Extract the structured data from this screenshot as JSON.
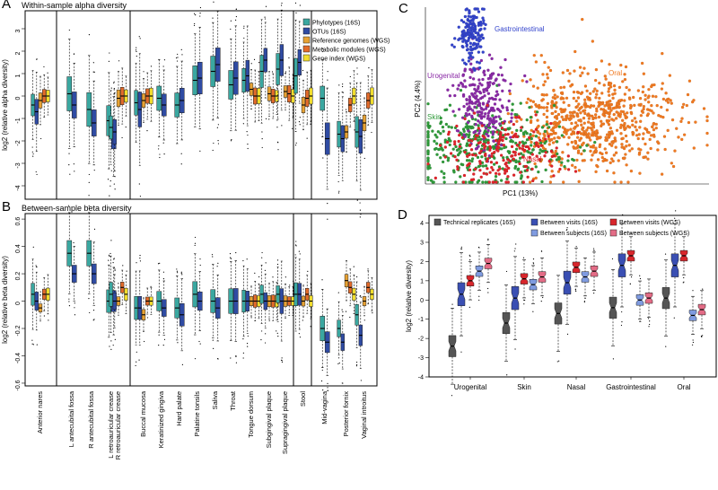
{
  "colors": {
    "phylo": "#3aa7a0",
    "otu": "#2f4ba3",
    "refgen": "#e8a233",
    "metab": "#e36b2a",
    "gene": "#f1dd2e",
    "gastro": "#3344cc",
    "oral": "#f07a22",
    "uro": "#8a2aa6",
    "skin": "#2f9a3a",
    "nasal": "#e0242a",
    "tech": "#555555",
    "bv16": "#3a4fb3",
    "bs16": "#d8262c",
    "bvwgs": "#7f9be0",
    "bswgs": "#e36c86"
  },
  "panels": {
    "A": {
      "letter": "A",
      "title": "Within-sample alpha diversity",
      "ylabel": "log2 (relative alpha diversity)"
    },
    "B": {
      "letter": "B",
      "title": "Between-sample beta diversity",
      "ylabel": "log2 (relative beta diversity)"
    },
    "C": {
      "letter": "C"
    },
    "D": {
      "letter": "D"
    }
  },
  "chart_data": [
    {
      "id": "A",
      "type": "box",
      "title": "Within-sample alpha diversity",
      "ylabel": "log2 (relative alpha diversity)",
      "yticks": [
        -4,
        -3,
        -2,
        -1,
        0,
        1,
        2,
        3
      ],
      "ylim": [
        -4.6,
        3.8
      ],
      "legend": [
        "Phylotypes (16S)",
        "OTUs (16S)",
        "Reference genomes (WGS)",
        "Metabolic modules (WGS)",
        "Gene index (WGS)"
      ],
      "categories": [
        "Anterior nares",
        "L antecubital fossa",
        "R antecubital fossa",
        "L retroauricular crease",
        "R retroauricular crease",
        "Buccal mucosa",
        "Keratinized gingiva",
        "Hard palate",
        "Palatine tonsils",
        "Saliva",
        "Throat",
        "Tongue dorsum",
        "Subgingival plaque",
        "Supragingival plaque",
        "Stool",
        "Mid-vagina",
        "Posterior fornix",
        "Vaginal introitus"
      ],
      "series": [
        {
          "name": "Phylotypes (16S)",
          "medians": [
            -0.4,
            0.1,
            -0.6,
            -1.1,
            -1.4,
            -0.3,
            -0.1,
            -0.4,
            0.7,
            1.1,
            0.5,
            0.7,
            1.1,
            1.2,
            0.9,
            -0.1,
            -1.7,
            -1.6
          ]
        },
        {
          "name": "OTUs (16S)",
          "medians": [
            -0.7,
            -0.4,
            -1.2,
            -1.8,
            -1.6,
            -0.6,
            -0.4,
            -0.2,
            0.8,
            1.4,
            0.8,
            0.9,
            1.6,
            1.6,
            1.5,
            -1.9,
            -1.9,
            -1.8
          ]
        },
        {
          "name": "Reference genomes (WGS)",
          "medians": [
            -0.2,
            null,
            null,
            null,
            -0.1,
            -0.2,
            null,
            null,
            null,
            null,
            null,
            0.3,
            0.1,
            0.2,
            -0.4,
            null,
            -1.6,
            -1.2
          ]
        },
        {
          "name": "Metabolic modules (WGS)",
          "medians": [
            0.0,
            null,
            null,
            null,
            0.0,
            0.0,
            null,
            null,
            null,
            null,
            null,
            0.0,
            0.0,
            0.1,
            -0.1,
            null,
            -0.4,
            -0.2
          ]
        },
        {
          "name": "Gene index (WGS)",
          "medians": [
            0.0,
            null,
            null,
            null,
            0.0,
            0.0,
            null,
            null,
            null,
            null,
            null,
            0.0,
            0.0,
            0.0,
            0.0,
            null,
            0.0,
            0.0
          ]
        }
      ]
    },
    {
      "id": "B",
      "type": "box",
      "title": "Between-sample beta diversity",
      "ylabel": "log2 (relative beta diversity)",
      "yticks": [
        -0.6,
        -0.4,
        -0.2,
        0.0,
        0.2,
        0.4,
        0.6
      ],
      "ylim": [
        -0.62,
        0.64
      ],
      "categories": [
        "Anterior nares",
        "L antecubital fossa",
        "R antecubital fossa",
        "L retroauricular crease",
        "R retroauricular crease",
        "Buccal mucosa",
        "Keratinized gingiva",
        "Hard palate",
        "Palatine tonsils",
        "Saliva",
        "Throat",
        "Tongue dorsum",
        "Subgingival plaque",
        "Supragingival plaque",
        "Stool",
        "Mid-vagina",
        "Posterior fornix",
        "Vaginal introitus"
      ],
      "series": [
        {
          "name": "Phylotypes (16S)",
          "medians": [
            0.05,
            0.35,
            0.35,
            0.0,
            0.05,
            -0.05,
            0.0,
            -0.05,
            0.05,
            0.0,
            0.0,
            0.0,
            0.05,
            0.05,
            0.05,
            -0.2,
            -0.2,
            -0.1
          ]
        },
        {
          "name": "OTUs (16S)",
          "medians": [
            0.0,
            0.2,
            0.2,
            0.0,
            0.0,
            -0.05,
            -0.05,
            -0.1,
            0.0,
            -0.05,
            0.0,
            0.0,
            0.0,
            0.0,
            0.05,
            -0.3,
            -0.3,
            -0.25
          ]
        },
        {
          "name": "Reference genomes (WGS)",
          "medians": [
            -0.05,
            null,
            null,
            null,
            0.0,
            -0.1,
            null,
            null,
            null,
            null,
            null,
            0.0,
            0.0,
            0.0,
            0.0,
            null,
            0.15,
            0.0
          ]
        },
        {
          "name": "Metabolic modules (WGS)",
          "medians": [
            0.05,
            null,
            null,
            null,
            0.1,
            0.0,
            null,
            null,
            null,
            null,
            null,
            0.0,
            0.0,
            0.0,
            0.05,
            null,
            0.1,
            0.1
          ]
        },
        {
          "name": "Gene index (WGS)",
          "medians": [
            0.05,
            null,
            null,
            null,
            0.05,
            0.0,
            null,
            null,
            null,
            null,
            null,
            0.0,
            0.0,
            0.0,
            0.0,
            null,
            0.05,
            0.05
          ]
        }
      ]
    },
    {
      "id": "C",
      "type": "scatter",
      "xlabel": "PC1 (13%)",
      "ylabel": "PC2 (4.4%)",
      "groups": [
        {
          "name": "Gastrointestinal",
          "key": "gastro"
        },
        {
          "name": "Oral",
          "key": "oral"
        },
        {
          "name": "Urogenital",
          "key": "uro"
        },
        {
          "name": "Skin",
          "key": "skin"
        },
        {
          "name": "Nasal",
          "key": "nasal"
        }
      ]
    },
    {
      "id": "D",
      "type": "box",
      "ylabel": "log2 (relative diversity)",
      "yticks": [
        -4,
        -3,
        -2,
        -1,
        0,
        1,
        2,
        3,
        4
      ],
      "ylim": [
        -4,
        4.4
      ],
      "legend": [
        "Technical replicates (16S)",
        "Between visits (16S)",
        "Between visits (WGS)",
        "Between subjects (16S)",
        "Between subjects (WGS)"
      ],
      "categories": [
        "Urogenital",
        "Skin",
        "Nasal",
        "Gastrointestinal",
        "Oral"
      ],
      "series": [
        {
          "name": "Technical replicates (16S)",
          "medians": [
            -2.4,
            -1.2,
            -0.7,
            -0.4,
            0.1
          ]
        },
        {
          "name": "Between visits (16S)",
          "medians": [
            0.3,
            0.1,
            0.9,
            1.8,
            1.8
          ]
        },
        {
          "name": "Between subjects (16S)",
          "medians": [
            1.0,
            1.1,
            1.7,
            2.3,
            2.3
          ]
        },
        {
          "name": "Between visits (WGS)",
          "medians": [
            1.5,
            0.8,
            1.2,
            0.0,
            -0.8
          ]
        },
        {
          "name": "Between subjects (WGS)",
          "medians": [
            1.9,
            1.2,
            1.5,
            0.1,
            -0.5
          ]
        }
      ]
    }
  ]
}
